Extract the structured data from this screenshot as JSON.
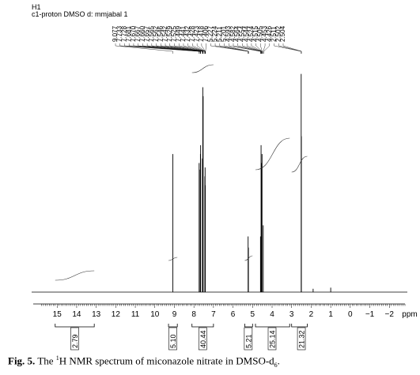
{
  "header": {
    "nucleus": "H1",
    "experiment": "c1-proton DMSO d: mmjabal 1"
  },
  "caption": {
    "label": "Fig. 5.",
    "pre": " The ",
    "sup": "1",
    "mid": "H NMR spectrum of miconazole nitrate in DMSO-d",
    "sub": "6",
    "post": "."
  },
  "chart_data": {
    "type": "line",
    "title": "",
    "xlabel": "ppm",
    "ylabel": "",
    "xlim": [
      15.9,
      -2.8
    ],
    "x_reversed": true,
    "xticks": [
      15,
      14,
      13,
      12,
      11,
      10,
      9,
      8,
      7,
      6,
      5,
      4,
      3,
      2,
      1,
      0,
      -1,
      -2
    ],
    "xtick_labels": [
      "15",
      "14",
      "13",
      "12",
      "11",
      "10",
      "9",
      "8",
      "7",
      "6",
      "5",
      "4",
      "3",
      "2",
      "1",
      "0",
      "−1",
      "−2"
    ],
    "peak_labels": [
      "9.077",
      "7.733",
      "7.728",
      "7.681",
      "7.670",
      "7.667",
      "7.660",
      "7.657",
      "7.565",
      "7.562",
      "7.546",
      "7.542",
      "7.529",
      "7.525",
      "7.449",
      "7.441",
      "7.432",
      "7.428",
      "7.423",
      "7.418",
      "7.406",
      "5.227",
      "5.224",
      "5.211",
      "5.201",
      "4.593",
      "4.582",
      "4.564",
      "4.554",
      "4.544",
      "4.524",
      "4.515",
      "4.505",
      "4.453",
      "4.426",
      "2.511",
      "2.502",
      "2.504"
    ],
    "peaks": [
      {
        "ppm": 9.077,
        "height": 0.62
      },
      {
        "ppm": 7.733,
        "height": 0.58
      },
      {
        "ppm": 7.681,
        "height": 0.55
      },
      {
        "ppm": 7.667,
        "height": 0.62
      },
      {
        "ppm": 7.657,
        "height": 0.66
      },
      {
        "ppm": 7.565,
        "height": 0.6
      },
      {
        "ppm": 7.546,
        "height": 0.92
      },
      {
        "ppm": 7.529,
        "height": 0.88
      },
      {
        "ppm": 7.441,
        "height": 0.52
      },
      {
        "ppm": 7.428,
        "height": 0.56
      },
      {
        "ppm": 7.418,
        "height": 0.48
      },
      {
        "ppm": 5.227,
        "height": 0.25
      },
      {
        "ppm": 5.211,
        "height": 0.2
      },
      {
        "ppm": 4.593,
        "height": 0.25
      },
      {
        "ppm": 4.564,
        "height": 0.66
      },
      {
        "ppm": 4.544,
        "height": 0.58
      },
      {
        "ppm": 4.515,
        "height": 0.62
      },
      {
        "ppm": 4.453,
        "height": 0.3
      },
      {
        "ppm": 2.511,
        "height": 0.98
      },
      {
        "ppm": 2.502,
        "height": 0.7
      },
      {
        "ppm": 1.9,
        "height": 0.015
      },
      {
        "ppm": 1.0,
        "height": 0.02
      }
    ],
    "integrals": [
      {
        "from": 15.1,
        "to": 13.1,
        "value": "2.79",
        "label_ppm": 14.1
      },
      {
        "from": 9.3,
        "to": 8.85,
        "value": "5.10",
        "label_ppm": 9.08
      },
      {
        "from": 8.1,
        "to": 7.0,
        "value": "40.44",
        "label_ppm": 7.55
      },
      {
        "from": 5.4,
        "to": 5.0,
        "value": "5.21",
        "label_ppm": 5.22
      },
      {
        "from": 4.85,
        "to": 3.1,
        "value": "25.14",
        "label_ppm": 4.0
      },
      {
        "from": 3.0,
        "to": 2.2,
        "value": "21.32",
        "label_ppm": 2.5
      }
    ]
  }
}
